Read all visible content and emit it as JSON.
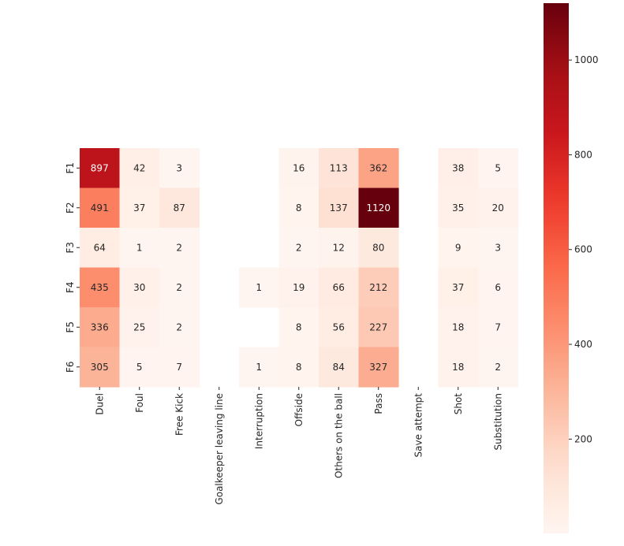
{
  "chart_data": {
    "type": "heatmap",
    "title": "",
    "xlabel": "",
    "ylabel": "",
    "rows": [
      "F1",
      "F2",
      "F3",
      "F4",
      "F5",
      "F6"
    ],
    "columns": [
      "Duel",
      "Foul",
      "Free Kick",
      "Goalkeeper leaving line",
      "Interruption",
      "Offside",
      "Others on the ball",
      "Pass",
      "Save attempt",
      "Shot",
      "Substitution"
    ],
    "values": [
      [
        897,
        42,
        3,
        null,
        null,
        16,
        113,
        362,
        null,
        38,
        5
      ],
      [
        491,
        37,
        87,
        null,
        null,
        8,
        137,
        1120,
        null,
        35,
        20
      ],
      [
        64,
        1,
        2,
        null,
        null,
        2,
        12,
        80,
        null,
        9,
        3
      ],
      [
        435,
        30,
        2,
        null,
        1,
        19,
        66,
        212,
        null,
        37,
        6
      ],
      [
        336,
        25,
        2,
        null,
        null,
        8,
        56,
        227,
        null,
        18,
        7
      ],
      [
        305,
        5,
        7,
        null,
        1,
        8,
        84,
        327,
        null,
        18,
        2
      ]
    ],
    "colormap": "Reds",
    "vmin": 1,
    "vmax": 1120,
    "colorbar_ticks": [
      200,
      400,
      600,
      800,
      1000
    ],
    "annotate": true,
    "missing_cells": "blank"
  }
}
